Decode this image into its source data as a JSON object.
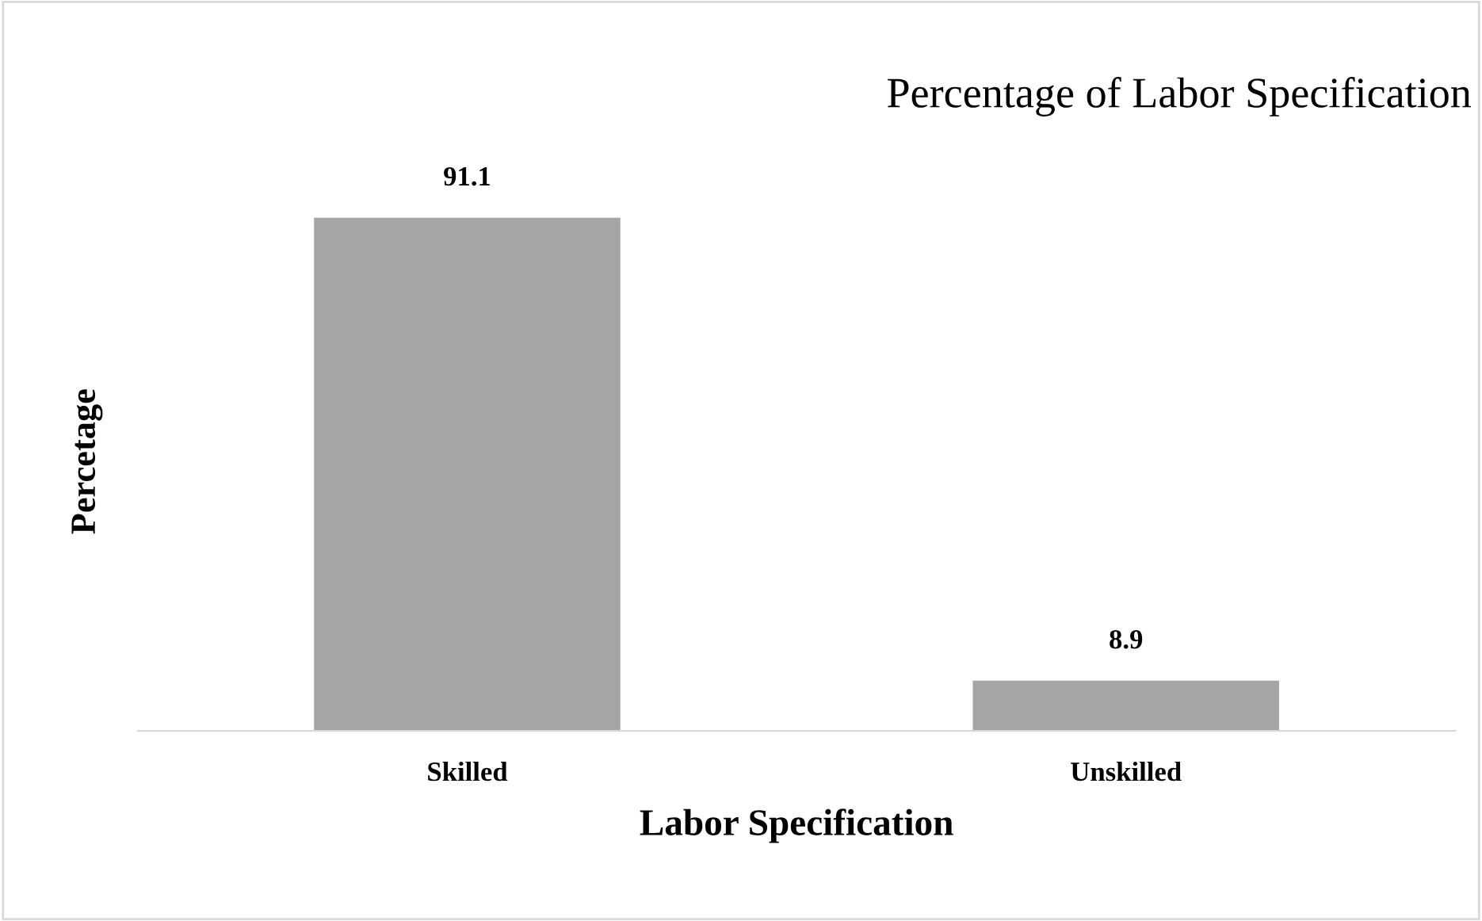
{
  "chart_data": {
    "type": "bar",
    "title": "Percentage of Labor Specification",
    "xlabel": "Labor Specification",
    "ylabel": "Percetage",
    "categories": [
      "Skilled",
      "Unskilled"
    ],
    "values": [
      91.1,
      8.9
    ],
    "color": "#a5a5a5",
    "tick_labels": "x",
    "data_labels": true,
    "grid": false,
    "legend": false
  }
}
